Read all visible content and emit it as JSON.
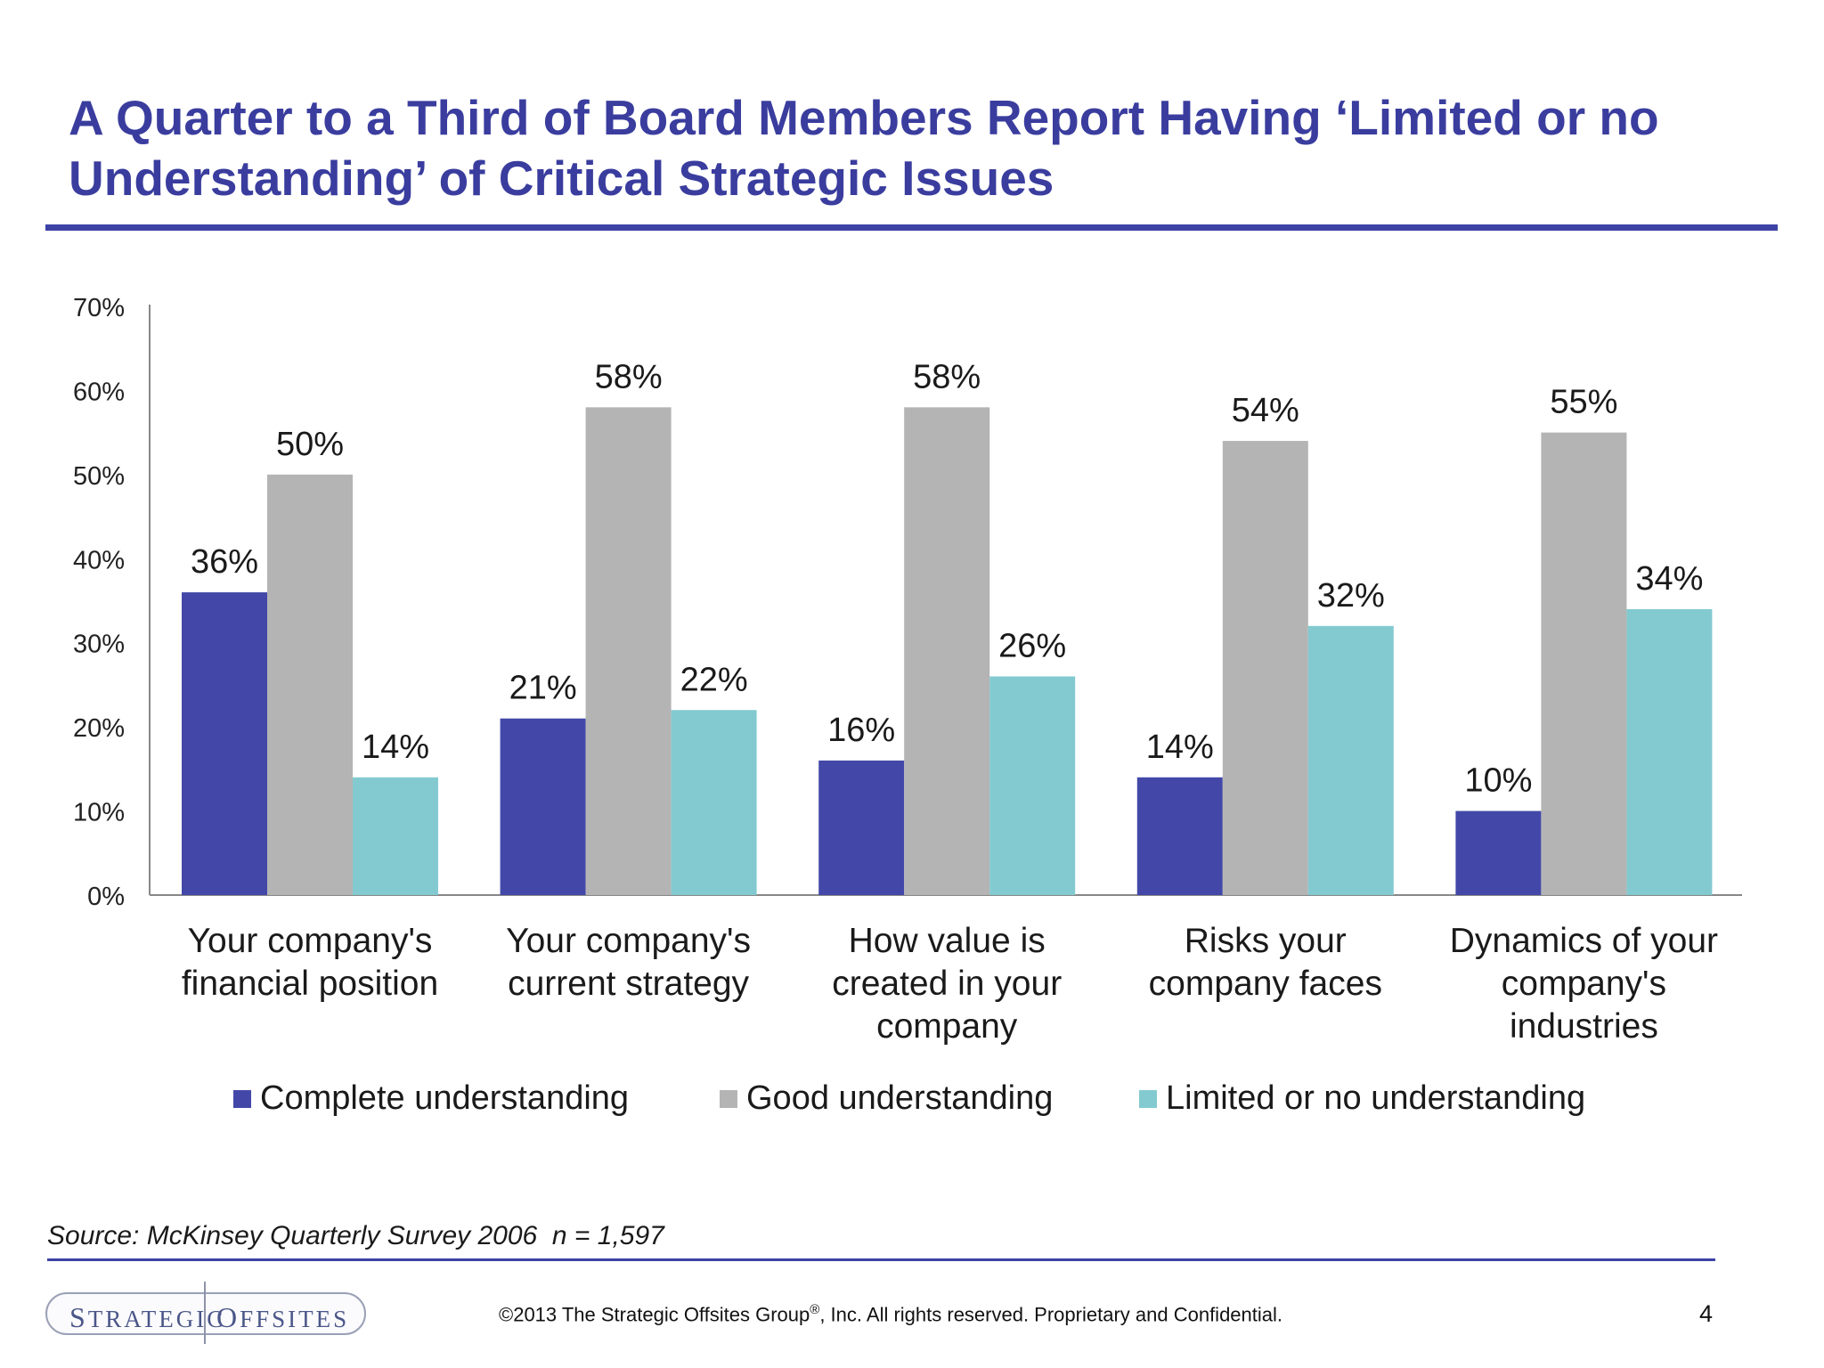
{
  "slide": {
    "title": "A Quarter to a Third of Board Members Report Having ‘Limited or no Understanding’ of Critical Strategic Issues",
    "source": "Source: McKinsey Quarterly Survey 2006  n = 1,597",
    "copyright_before": "©2013 The Strategic Offsites Group",
    "copyright_sup": "®",
    "copyright_after": ", Inc.  All rights reserved. Proprietary and Confidential.",
    "page_number": "4",
    "logo_left": "Strategic",
    "logo_right": "Offsites"
  },
  "chart_data": {
    "type": "bar",
    "categories": [
      [
        "Your company's",
        "financial position"
      ],
      [
        "Your company's",
        "current strategy"
      ],
      [
        "How value is",
        "created in your",
        "company"
      ],
      [
        "Risks your",
        "company faces"
      ],
      [
        "Dynamics of your",
        "company's",
        "industries"
      ]
    ],
    "series": [
      {
        "name": "Complete understanding",
        "color": "#4348a8",
        "values": [
          36,
          21,
          16,
          14,
          10
        ]
      },
      {
        "name": "Good understanding",
        "color": "#b4b4b4",
        "values": [
          50,
          58,
          58,
          54,
          55
        ]
      },
      {
        "name": "Limited or no understanding",
        "color": "#83cad0",
        "values": [
          14,
          22,
          26,
          32,
          34
        ]
      }
    ],
    "ylim": [
      0,
      70
    ],
    "yticks": [
      0,
      10,
      20,
      30,
      40,
      50,
      60,
      70
    ],
    "y_tick_suffix": "%",
    "value_suffix": "%",
    "grid": false,
    "legend_position": "bottom"
  }
}
